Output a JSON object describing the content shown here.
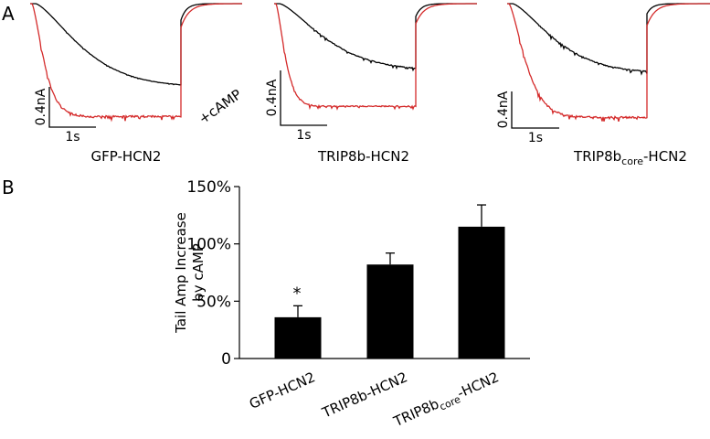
{
  "panel_a": {
    "letter": "A",
    "scale_current": "0.4nA",
    "scale_time": "1s",
    "condition_label": "+cAMP",
    "colors": {
      "control": "#000000",
      "camp": "#d42a2a"
    },
    "traces": [
      {
        "label": "GFP-HCN2",
        "sub": "",
        "suffix": ""
      },
      {
        "label": "TRIP8b-HCN2",
        "sub": "",
        "suffix": ""
      },
      {
        "label": "TRIP8b",
        "sub": "core",
        "suffix": "-HCN2"
      }
    ]
  },
  "chart_data": {
    "panel_letter": "B",
    "type": "bar",
    "title": "",
    "ylabel": [
      "Tail Amp Increase",
      "by cAMP"
    ],
    "xlabel": "",
    "categories": [
      {
        "label": "GFP-HCN2",
        "sub": "",
        "suffix": ""
      },
      {
        "label": "TRIP8b-HCN2",
        "sub": "",
        "suffix": ""
      },
      {
        "label": "TRIP8b",
        "sub": "core",
        "suffix": "-HCN2"
      }
    ],
    "values": [
      36,
      82,
      115
    ],
    "errors": [
      10,
      10,
      19
    ],
    "annotations": [
      "*",
      "",
      ""
    ],
    "yticks": [
      0,
      50,
      100,
      150
    ],
    "ytick_labels": [
      "0",
      "50%",
      "100%",
      "150%"
    ],
    "ylim": [
      0,
      150
    ],
    "grid": false,
    "bar_color": "#000000"
  }
}
